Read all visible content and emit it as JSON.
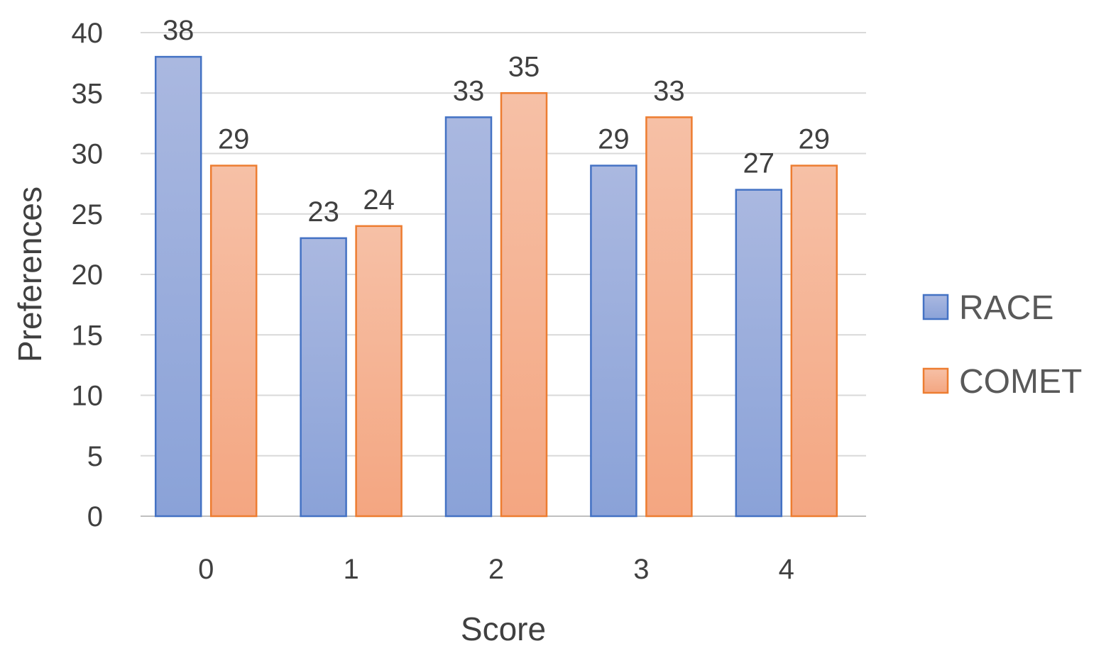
{
  "chart_data": {
    "type": "bar",
    "categories": [
      "0",
      "1",
      "2",
      "3",
      "4"
    ],
    "series": [
      {
        "name": "RACE",
        "values": [
          38,
          23,
          33,
          29,
          27
        ]
      },
      {
        "name": "COMET",
        "values": [
          29,
          24,
          35,
          33,
          29
        ]
      }
    ],
    "xlabel": "Score",
    "ylabel": "Preferences",
    "ylim": [
      0,
      40
    ],
    "yticks": [
      0,
      5,
      10,
      15,
      20,
      25,
      30,
      35,
      40
    ],
    "grid": true,
    "legend": "right",
    "data_labels": true,
    "colors": {
      "RACE": {
        "fill_top": "#aab8e0",
        "fill_bottom": "#8aa2d8",
        "stroke": "#4472c4"
      },
      "COMET": {
        "fill_top": "#f6c0a6",
        "fill_bottom": "#f4a681",
        "stroke": "#ed7d31"
      }
    }
  }
}
